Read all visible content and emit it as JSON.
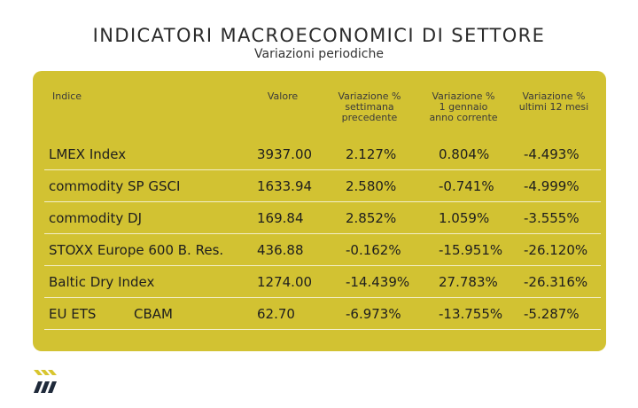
{
  "header": {
    "title": "INDICATORI MACROECONOMICI DI SETTORE",
    "subtitle": "Variazioni periodiche"
  },
  "colors": {
    "card_background": "#d2c232",
    "row_divider": "#f3efc9",
    "logo_yellow": "#d8c52e",
    "logo_dark": "#1f2a3a"
  },
  "table": {
    "headers": {
      "index": "Indice",
      "value": "Valore",
      "weekly": [
        "Variazione %",
        "settimana",
        "precedente"
      ],
      "ytd": [
        "Variazione %",
        "1 gennaio",
        "anno corrente"
      ],
      "yearly": [
        "Variazione %",
        "ultimi 12 mesi"
      ]
    },
    "rows": [
      {
        "name": "LMEX Index",
        "value": "3937.00",
        "weekly": "2.127%",
        "ytd": "0.804%",
        "yearly": "-4.493%"
      },
      {
        "name": "commodity SP GSCI",
        "value": "1633.94",
        "weekly": "2.580%",
        "ytd": "-0.741%",
        "yearly": "-4.999%"
      },
      {
        "name": "commodity DJ",
        "value": "169.84",
        "weekly": "2.852%",
        "ytd": "1.059%",
        "yearly": "-3.555%"
      },
      {
        "name": "STOXX Europe 600 B. Res.",
        "value": "436.88",
        "weekly": "-0.162%",
        "ytd": "-15.951%",
        "yearly": "-26.120%"
      },
      {
        "name": "Baltic Dry Index",
        "value": "1274.00",
        "weekly": "-14.439%",
        "ytd": "27.783%",
        "yearly": "-26.316%"
      },
      {
        "name": "EU ETS",
        "name_extra": "CBAM",
        "value": "62.70",
        "weekly": "-6.973%",
        "ytd": "-13.755%",
        "yearly": "-5.287%"
      }
    ]
  },
  "logo": {
    "icon": "double-chevron-logo-icon"
  }
}
